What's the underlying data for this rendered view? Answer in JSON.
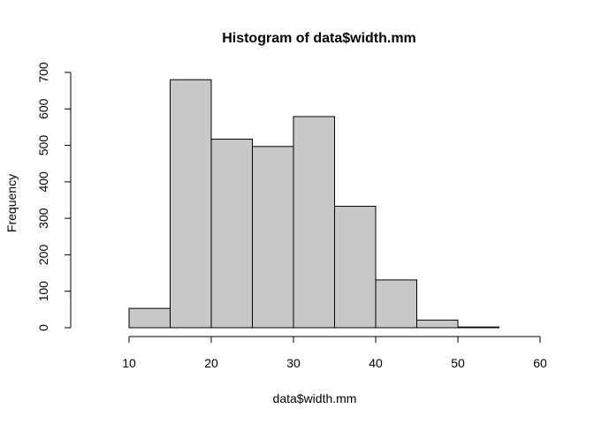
{
  "chart_data": {
    "type": "bar",
    "title": "Histogram of data$width.mm",
    "xlabel": "data$width.mm",
    "ylabel": "Frequency",
    "bins": [
      {
        "start": 5,
        "end": 10,
        "count": 0
      },
      {
        "start": 10,
        "end": 15,
        "count": 53
      },
      {
        "start": 15,
        "end": 20,
        "count": 680
      },
      {
        "start": 20,
        "end": 25,
        "count": 517
      },
      {
        "start": 25,
        "end": 30,
        "count": 497
      },
      {
        "start": 30,
        "end": 35,
        "count": 579
      },
      {
        "start": 35,
        "end": 40,
        "count": 333
      },
      {
        "start": 40,
        "end": 45,
        "count": 131
      },
      {
        "start": 45,
        "end": 50,
        "count": 21
      },
      {
        "start": 50,
        "end": 55,
        "count": 2
      },
      {
        "start": 55,
        "end": 60,
        "count": 0
      }
    ],
    "xlim": [
      5,
      60
    ],
    "ylim": [
      0,
      700
    ],
    "x_ticks": [
      "10",
      "20",
      "30",
      "40",
      "50",
      "60"
    ],
    "y_ticks": [
      "0",
      "100",
      "200",
      "300",
      "400",
      "500",
      "600",
      "700"
    ],
    "grid": false,
    "bar_color": "#c8c8c8",
    "edge_color": "#000000"
  }
}
